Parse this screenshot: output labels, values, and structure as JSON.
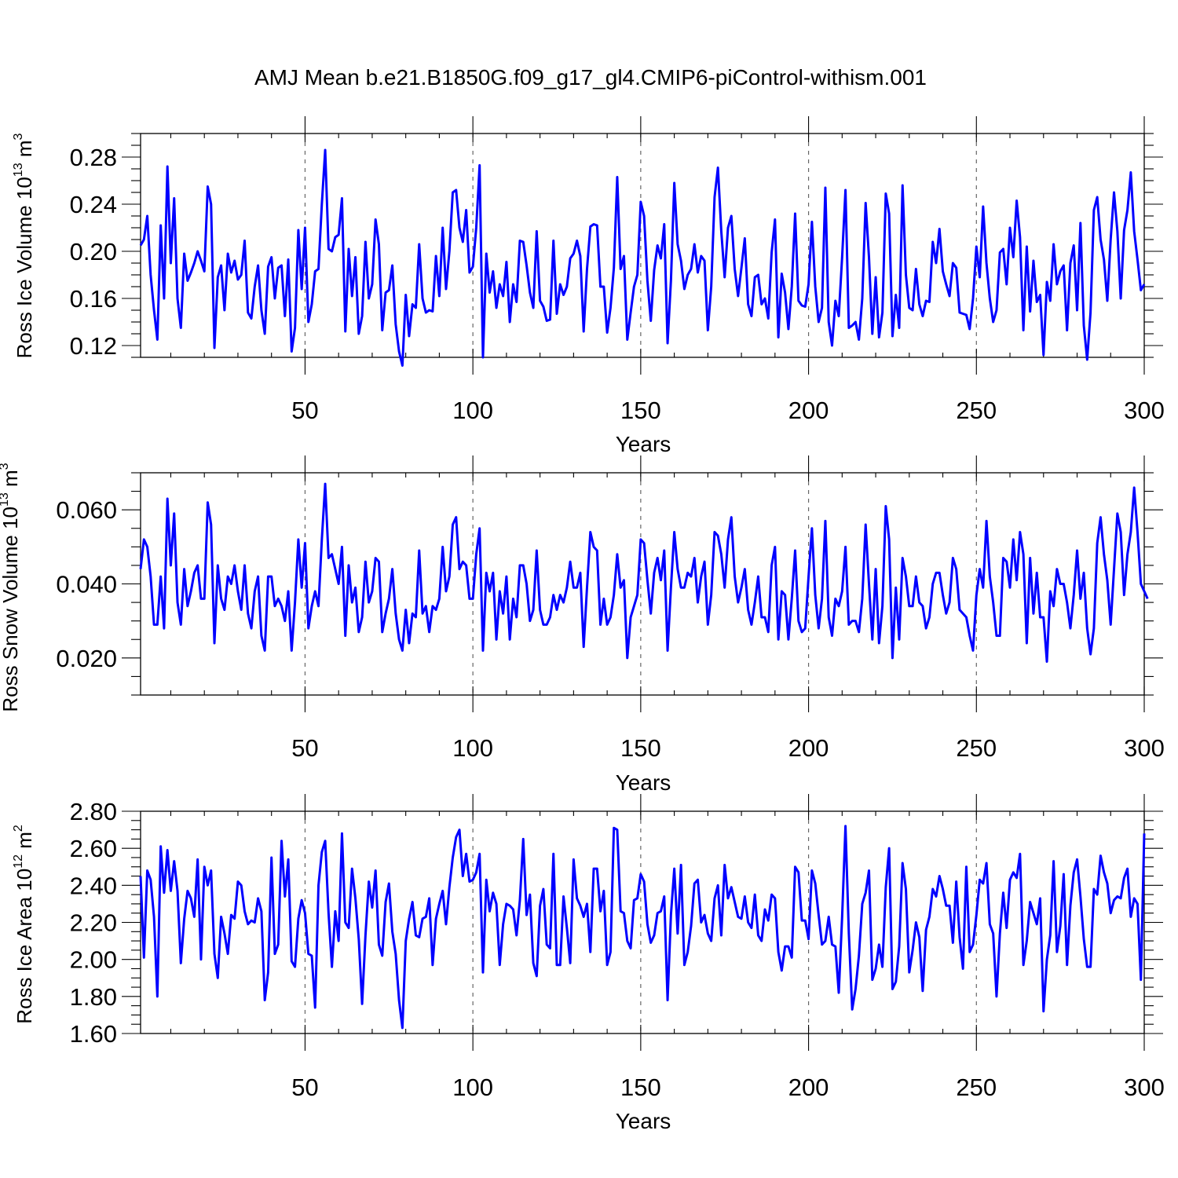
{
  "figure_title": "AMJ Mean b.e21.B1850G.f09_g17_gl4.CMIP6-piControl-withism.001",
  "colors": {
    "series": "#0000ff",
    "grid": "#666666"
  },
  "chart_data": [
    {
      "type": "line",
      "title": "AMJ Mean b.e21.B1850G.f09_g17_gl4.CMIP6-piControl-withism.001",
      "xlabel": "Years",
      "ylabel": {
        "base": "Ross Ice Volume 10",
        "exp1": "13",
        "unit": " m",
        "exp2": "3"
      },
      "xlim": [
        1,
        300
      ],
      "ylim": [
        0.11,
        0.3
      ],
      "xticks": [
        50,
        100,
        150,
        200,
        250,
        300
      ],
      "yticks": [
        0.12,
        0.16,
        0.2,
        0.24,
        0.28
      ],
      "ytick_labels": [
        "0.12",
        "0.16",
        "0.20",
        "0.24",
        "0.28"
      ],
      "grid": "dashed vertical at 50,100,150,200,250",
      "series": [
        {
          "x_start": 1,
          "values": [
            0.205,
            0.21,
            0.23,
            0.18,
            0.15,
            0.125,
            0.222,
            0.16,
            0.272,
            0.19,
            0.245,
            0.16,
            0.135,
            0.198,
            0.175,
            0.182,
            0.19,
            0.2,
            0.192,
            0.183,
            0.255,
            0.24,
            0.118,
            0.178,
            0.188,
            0.15,
            0.198,
            0.182,
            0.192,
            0.176,
            0.18,
            0.209,
            0.148,
            0.143,
            0.17,
            0.188,
            0.15,
            0.13,
            0.187,
            0.195,
            0.16,
            0.186,
            0.188,
            0.145,
            0.193,
            0.115,
            0.135,
            0.218,
            0.168,
            0.22,
            0.14,
            0.155,
            0.183,
            0.185,
            0.24,
            0.286,
            0.202,
            0.2,
            0.212,
            0.214,
            0.245,
            0.132,
            0.202,
            0.162,
            0.195,
            0.13,
            0.145,
            0.208,
            0.16,
            0.172,
            0.227,
            0.206,
            0.133,
            0.165,
            0.167,
            0.188,
            0.138,
            0.115,
            0.103,
            0.163,
            0.128,
            0.155,
            0.152,
            0.206,
            0.16,
            0.148,
            0.15,
            0.149,
            0.196,
            0.162,
            0.22,
            0.168,
            0.2,
            0.25,
            0.252,
            0.22,
            0.208,
            0.235,
            0.182,
            0.187,
            0.22,
            0.273,
            0.11,
            0.198,
            0.165,
            0.183,
            0.152,
            0.172,
            0.162,
            0.191,
            0.14,
            0.172,
            0.157,
            0.209,
            0.208,
            0.188,
            0.165,
            0.152,
            0.217,
            0.158,
            0.153,
            0.141,
            0.142,
            0.209,
            0.147,
            0.172,
            0.163,
            0.17,
            0.194,
            0.198,
            0.209,
            0.196,
            0.132,
            0.185,
            0.221,
            0.223,
            0.222,
            0.17,
            0.17,
            0.131,
            0.152,
            0.186,
            0.263,
            0.185,
            0.196,
            0.125,
            0.148,
            0.17,
            0.18,
            0.242,
            0.23,
            0.175,
            0.141,
            0.184,
            0.205,
            0.194,
            0.223,
            0.122,
            0.175,
            0.258,
            0.206,
            0.192,
            0.168,
            0.18,
            0.185,
            0.206,
            0.182,
            0.196,
            0.192,
            0.133,
            0.17,
            0.246,
            0.271,
            0.217,
            0.178,
            0.22,
            0.23,
            0.185,
            0.162,
            0.186,
            0.211,
            0.155,
            0.145,
            0.178,
            0.18,
            0.155,
            0.16,
            0.143,
            0.199,
            0.227,
            0.127,
            0.181,
            0.165,
            0.134,
            0.17,
            0.232,
            0.158,
            0.154,
            0.153,
            0.172,
            0.225,
            0.17,
            0.14,
            0.152,
            0.254,
            0.14,
            0.12,
            0.158,
            0.145,
            0.195,
            0.252,
            0.135,
            0.137,
            0.14,
            0.125,
            0.16,
            0.241,
            0.195,
            0.13,
            0.178,
            0.127,
            0.148,
            0.249,
            0.232,
            0.128,
            0.163,
            0.135,
            0.256,
            0.18,
            0.152,
            0.15,
            0.185,
            0.155,
            0.145,
            0.158,
            0.157,
            0.208,
            0.19,
            0.219,
            0.183,
            0.172,
            0.162,
            0.19,
            0.186,
            0.148,
            0.147,
            0.146,
            0.134,
            0.16,
            0.204,
            0.178,
            0.238,
            0.19,
            0.16,
            0.14,
            0.15,
            0.199,
            0.202,
            0.172,
            0.22,
            0.195,
            0.243,
            0.212,
            0.133,
            0.204,
            0.149,
            0.192,
            0.157,
            0.163,
            0.112,
            0.174,
            0.158,
            0.206,
            0.172,
            0.183,
            0.188,
            0.133,
            0.19,
            0.205,
            0.15,
            0.224,
            0.137,
            0.108,
            0.148,
            0.235,
            0.246,
            0.21,
            0.193,
            0.158,
            0.21,
            0.25,
            0.217,
            0.16,
            0.218,
            0.235,
            0.267,
            0.217,
            0.193,
            0.167,
            0.172
          ]
        }
      ]
    },
    {
      "type": "line",
      "xlabel": "Years",
      "ylabel": {
        "base": "Ross Snow Volume 10",
        "exp1": "13",
        "unit": " m",
        "exp2": "3"
      },
      "xlim": [
        1,
        300
      ],
      "ylim": [
        0.01,
        0.07
      ],
      "xticks": [
        50,
        100,
        150,
        200,
        250,
        300
      ],
      "yticks": [
        0.02,
        0.04,
        0.06
      ],
      "ytick_labels": [
        "0.020",
        "0.040",
        "0.060"
      ],
      "grid": "dashed vertical at 50,100,150,200,250",
      "series": [
        {
          "x_start": 1,
          "values": [
            0.044,
            0.052,
            0.05,
            0.042,
            0.029,
            0.029,
            0.042,
            0.028,
            0.063,
            0.045,
            0.059,
            0.035,
            0.029,
            0.044,
            0.034,
            0.038,
            0.043,
            0.045,
            0.036,
            0.036,
            0.062,
            0.056,
            0.024,
            0.045,
            0.036,
            0.033,
            0.042,
            0.04,
            0.045,
            0.038,
            0.033,
            0.045,
            0.032,
            0.028,
            0.038,
            0.042,
            0.026,
            0.022,
            0.042,
            0.042,
            0.034,
            0.036,
            0.034,
            0.03,
            0.038,
            0.022,
            0.035,
            0.052,
            0.039,
            0.051,
            0.028,
            0.034,
            0.038,
            0.034,
            0.052,
            0.067,
            0.047,
            0.048,
            0.044,
            0.04,
            0.05,
            0.026,
            0.045,
            0.035,
            0.039,
            0.027,
            0.031,
            0.046,
            0.035,
            0.038,
            0.047,
            0.046,
            0.027,
            0.032,
            0.036,
            0.044,
            0.032,
            0.025,
            0.022,
            0.033,
            0.024,
            0.032,
            0.031,
            0.049,
            0.032,
            0.034,
            0.027,
            0.034,
            0.033,
            0.036,
            0.05,
            0.038,
            0.042,
            0.056,
            0.058,
            0.044,
            0.046,
            0.045,
            0.036,
            0.036,
            0.048,
            0.055,
            0.022,
            0.043,
            0.038,
            0.043,
            0.025,
            0.038,
            0.032,
            0.042,
            0.025,
            0.036,
            0.031,
            0.045,
            0.045,
            0.04,
            0.03,
            0.033,
            0.049,
            0.033,
            0.029,
            0.029,
            0.031,
            0.037,
            0.033,
            0.037,
            0.035,
            0.039,
            0.046,
            0.039,
            0.039,
            0.043,
            0.023,
            0.039,
            0.054,
            0.05,
            0.049,
            0.029,
            0.036,
            0.029,
            0.031,
            0.037,
            0.048,
            0.039,
            0.041,
            0.02,
            0.031,
            0.034,
            0.037,
            0.052,
            0.051,
            0.041,
            0.032,
            0.043,
            0.047,
            0.041,
            0.049,
            0.022,
            0.039,
            0.054,
            0.044,
            0.039,
            0.039,
            0.043,
            0.042,
            0.047,
            0.035,
            0.042,
            0.046,
            0.029,
            0.037,
            0.054,
            0.053,
            0.048,
            0.039,
            0.052,
            0.058,
            0.042,
            0.035,
            0.039,
            0.044,
            0.033,
            0.029,
            0.035,
            0.042,
            0.031,
            0.031,
            0.027,
            0.045,
            0.05,
            0.025,
            0.038,
            0.037,
            0.025,
            0.036,
            0.049,
            0.03,
            0.027,
            0.028,
            0.042,
            0.055,
            0.037,
            0.028,
            0.036,
            0.057,
            0.031,
            0.026,
            0.036,
            0.034,
            0.038,
            0.05,
            0.029,
            0.03,
            0.03,
            0.027,
            0.036,
            0.056,
            0.04,
            0.025,
            0.044,
            0.024,
            0.034,
            0.061,
            0.052,
            0.02,
            0.039,
            0.025,
            0.047,
            0.042,
            0.034,
            0.034,
            0.042,
            0.035,
            0.034,
            0.028,
            0.031,
            0.04,
            0.043,
            0.043,
            0.037,
            0.032,
            0.035,
            0.047,
            0.044,
            0.033,
            0.032,
            0.031,
            0.026,
            0.022,
            0.037,
            0.044,
            0.039,
            0.057,
            0.042,
            0.035,
            0.026,
            0.026,
            0.047,
            0.046,
            0.039,
            0.052,
            0.041,
            0.054,
            0.048,
            0.024,
            0.047,
            0.032,
            0.043,
            0.031,
            0.031,
            0.019,
            0.038,
            0.034,
            0.044,
            0.04,
            0.04,
            0.035,
            0.028,
            0.037,
            0.049,
            0.036,
            0.043,
            0.028,
            0.021,
            0.028,
            0.051,
            0.058,
            0.048,
            0.041,
            0.029,
            0.044,
            0.059,
            0.054,
            0.037,
            0.048,
            0.054,
            0.066,
            0.054,
            0.04,
            0.038,
            0.036
          ]
        }
      ]
    },
    {
      "type": "line",
      "xlabel": "Years",
      "ylabel": {
        "base": "Ross Ice Area 10",
        "exp1": "12",
        "unit": " m",
        "exp2": "2"
      },
      "xlim": [
        1,
        300
      ],
      "ylim": [
        1.6,
        2.8
      ],
      "xticks": [
        50,
        100,
        150,
        200,
        250,
        300
      ],
      "yticks": [
        1.6,
        1.8,
        2.0,
        2.2,
        2.4,
        2.6,
        2.8
      ],
      "ytick_labels": [
        "1.60",
        "1.80",
        "2.00",
        "2.20",
        "2.40",
        "2.60",
        "2.80"
      ],
      "grid": "dashed vertical at 50,100,150,200,250",
      "series": [
        {
          "x_start": 1,
          "values": [
            2.45,
            2.01,
            2.48,
            2.43,
            2.23,
            1.8,
            2.61,
            2.36,
            2.59,
            2.37,
            2.53,
            2.37,
            1.98,
            2.22,
            2.37,
            2.33,
            2.23,
            2.54,
            2.0,
            2.5,
            2.4,
            2.48,
            2.03,
            1.9,
            2.23,
            2.14,
            2.03,
            2.24,
            2.22,
            2.42,
            2.4,
            2.26,
            2.19,
            2.21,
            2.2,
            2.33,
            2.26,
            1.78,
            1.93,
            2.55,
            2.03,
            2.08,
            2.64,
            2.34,
            2.54,
            1.99,
            1.96,
            2.22,
            2.32,
            2.25,
            2.03,
            2.02,
            1.74,
            2.4,
            2.58,
            2.64,
            2.25,
            1.96,
            2.26,
            2.1,
            2.68,
            2.2,
            2.17,
            2.49,
            2.33,
            2.11,
            1.76,
            2.13,
            2.42,
            2.28,
            2.48,
            2.08,
            2.02,
            2.31,
            2.41,
            2.15,
            2.03,
            1.78,
            1.63,
            2.1,
            2.22,
            2.31,
            2.13,
            2.12,
            2.22,
            2.23,
            2.33,
            1.97,
            2.22,
            2.3,
            2.37,
            2.19,
            2.39,
            2.55,
            2.66,
            2.7,
            2.45,
            2.57,
            2.42,
            2.43,
            2.47,
            2.57,
            1.93,
            2.43,
            2.26,
            2.36,
            2.3,
            1.97,
            2.19,
            2.3,
            2.29,
            2.27,
            2.13,
            2.32,
            2.65,
            2.24,
            2.35,
            1.98,
            1.91,
            2.29,
            2.38,
            2.08,
            2.06,
            2.57,
            1.97,
            1.97,
            2.34,
            2.17,
            1.98,
            2.54,
            2.33,
            2.29,
            2.23,
            2.3,
            2.04,
            2.49,
            2.49,
            2.26,
            2.37,
            1.97,
            2.04,
            2.71,
            2.7,
            2.26,
            2.25,
            2.1,
            2.06,
            2.32,
            2.33,
            2.46,
            2.42,
            2.19,
            2.09,
            2.13,
            2.25,
            2.26,
            2.34,
            1.78,
            2.24,
            2.49,
            2.14,
            2.51,
            1.97,
            2.04,
            2.18,
            2.41,
            2.43,
            2.2,
            2.24,
            2.14,
            2.1,
            2.33,
            2.4,
            2.13,
            2.51,
            2.33,
            2.39,
            2.31,
            2.23,
            2.22,
            2.34,
            2.2,
            2.17,
            2.35,
            2.13,
            2.1,
            2.27,
            2.21,
            2.35,
            2.33,
            2.04,
            1.94,
            2.07,
            2.07,
            2.01,
            2.5,
            2.47,
            2.21,
            2.21,
            2.11,
            2.48,
            2.41,
            2.24,
            2.08,
            2.1,
            2.23,
            2.08,
            2.07,
            1.82,
            2.23,
            2.72,
            2.14,
            1.73,
            1.84,
            2.02,
            2.3,
            2.36,
            2.48,
            1.89,
            1.95,
            2.08,
            1.96,
            2.39,
            2.6,
            1.84,
            1.88,
            2.07,
            2.52,
            2.38,
            1.93,
            2.05,
            2.2,
            2.12,
            1.83,
            2.16,
            2.23,
            2.38,
            2.34,
            2.45,
            2.38,
            2.29,
            2.29,
            2.09,
            2.42,
            2.12,
            1.95,
            2.5,
            2.04,
            2.08,
            2.24,
            2.43,
            2.41,
            2.52,
            2.19,
            2.14,
            1.8,
            2.14,
            2.36,
            2.17,
            2.43,
            2.47,
            2.44,
            2.57,
            1.97,
            2.1,
            2.31,
            2.25,
            2.19,
            2.33,
            1.72,
            2.0,
            2.13,
            2.53,
            2.04,
            2.18,
            2.46,
            1.97,
            2.29,
            2.47,
            2.54,
            2.34,
            2.11,
            1.96,
            1.96,
            2.38,
            2.35,
            2.56,
            2.47,
            2.41,
            2.25,
            2.32,
            2.34,
            2.33,
            2.44,
            2.49,
            2.23,
            2.33,
            2.3,
            1.89,
            2.68
          ]
        }
      ]
    }
  ]
}
